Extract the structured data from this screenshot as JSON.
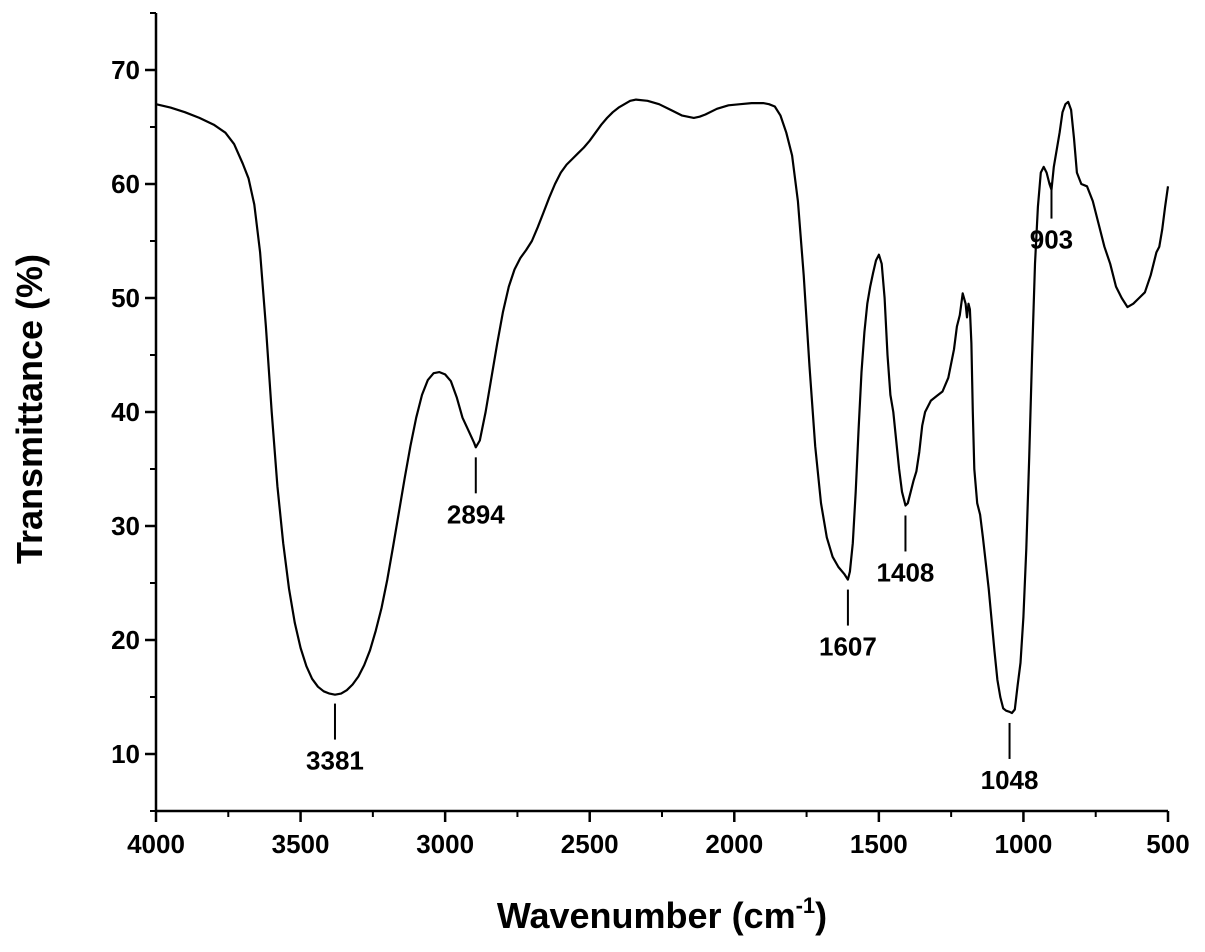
{
  "chart_data": {
    "type": "line",
    "title": "",
    "xlabel": "Wavenumber (cm",
    "xlabel_superscript": "-1",
    "xlabel_suffix": ")",
    "ylabel": "Transmittance  (%)",
    "xlim": [
      4000,
      500
    ],
    "ylim": [
      5,
      75
    ],
    "x_reversed": true,
    "x_ticks": [
      4000,
      3500,
      3000,
      2500,
      2000,
      1500,
      1000,
      500
    ],
    "x_tick_labels": [
      "4000",
      "3500",
      "3000",
      "2500",
      "2000",
      "1500",
      "1000",
      "500"
    ],
    "y_ticks": [
      10,
      20,
      30,
      40,
      50,
      60,
      70
    ],
    "y_tick_labels": [
      "10",
      "20",
      "30",
      "40",
      "50",
      "60",
      "70"
    ],
    "grid": false,
    "line_color": "#000000",
    "series": [
      {
        "x": [
          4000,
          3950,
          3900,
          3850,
          3800,
          3760,
          3730,
          3700,
          3680,
          3660,
          3640,
          3620,
          3600,
          3580,
          3560,
          3540,
          3520,
          3500,
          3480,
          3460,
          3440,
          3420,
          3400,
          3381,
          3360,
          3340,
          3320,
          3300,
          3280,
          3260,
          3240,
          3220,
          3200,
          3180,
          3160,
          3140,
          3120,
          3100,
          3080,
          3060,
          3040,
          3020,
          3000,
          2980,
          2960,
          2940,
          2920,
          2900,
          2894,
          2880,
          2860,
          2840,
          2820,
          2800,
          2780,
          2760,
          2740,
          2720,
          2700,
          2680,
          2660,
          2640,
          2620,
          2600,
          2580,
          2560,
          2540,
          2520,
          2500,
          2480,
          2460,
          2440,
          2420,
          2400,
          2380,
          2360,
          2340,
          2300,
          2260,
          2220,
          2180,
          2140,
          2120,
          2100,
          2060,
          2020,
          1980,
          1940,
          1900,
          1880,
          1860,
          1840,
          1820,
          1800,
          1780,
          1760,
          1740,
          1720,
          1700,
          1680,
          1660,
          1640,
          1620,
          1607,
          1600,
          1590,
          1580,
          1570,
          1560,
          1550,
          1540,
          1530,
          1520,
          1510,
          1500,
          1490,
          1480,
          1470,
          1460,
          1450,
          1440,
          1430,
          1420,
          1408,
          1400,
          1390,
          1380,
          1370,
          1360,
          1350,
          1340,
          1320,
          1300,
          1280,
          1260,
          1240,
          1230,
          1220,
          1210,
          1200,
          1195,
          1190,
          1185,
          1180,
          1175,
          1170,
          1160,
          1150,
          1140,
          1120,
          1100,
          1090,
          1080,
          1070,
          1060,
          1048,
          1040,
          1030,
          1020,
          1010,
          1000,
          990,
          980,
          970,
          960,
          950,
          940,
          930,
          920,
          910,
          903,
          895,
          885,
          875,
          865,
          855,
          845,
          835,
          825,
          815,
          800,
          780,
          760,
          740,
          720,
          700,
          680,
          660,
          640,
          620,
          600,
          580,
          560,
          540,
          530,
          520,
          510,
          500
        ],
        "y": [
          67.0,
          66.7,
          66.3,
          65.8,
          65.2,
          64.5,
          63.5,
          61.8,
          60.5,
          58.2,
          54.0,
          47.5,
          40.0,
          33.5,
          28.5,
          24.5,
          21.5,
          19.3,
          17.7,
          16.6,
          15.9,
          15.5,
          15.3,
          15.2,
          15.3,
          15.6,
          16.1,
          16.8,
          17.8,
          19.1,
          20.8,
          22.8,
          25.3,
          28.2,
          31.2,
          34.2,
          37.0,
          39.5,
          41.5,
          42.8,
          43.4,
          43.5,
          43.3,
          42.7,
          41.3,
          39.5,
          38.4,
          37.3,
          36.9,
          37.5,
          40.0,
          43.0,
          46.0,
          48.8,
          51.0,
          52.5,
          53.5,
          54.2,
          55.0,
          56.2,
          57.5,
          58.8,
          60.0,
          61.0,
          61.7,
          62.2,
          62.7,
          63.2,
          63.8,
          64.5,
          65.2,
          65.8,
          66.3,
          66.7,
          67.0,
          67.3,
          67.4,
          67.3,
          67.0,
          66.5,
          66.0,
          65.8,
          65.9,
          66.1,
          66.6,
          66.9,
          67.0,
          67.1,
          67.1,
          67.0,
          66.8,
          66.0,
          64.5,
          62.5,
          58.5,
          52.0,
          44.0,
          37.0,
          32.0,
          29.0,
          27.3,
          26.4,
          25.8,
          25.3,
          26.0,
          28.5,
          33.0,
          38.5,
          43.5,
          47.0,
          49.5,
          51.0,
          52.2,
          53.3,
          53.8,
          53.0,
          50.0,
          45.0,
          41.5,
          40.0,
          37.5,
          35.0,
          33.0,
          31.8,
          32.0,
          33.0,
          34.0,
          34.8,
          36.5,
          38.8,
          40.0,
          41.0,
          41.4,
          41.8,
          43.0,
          45.5,
          47.5,
          48.5,
          50.4,
          49.5,
          48.3,
          49.5,
          49.0,
          46.0,
          40.0,
          35.0,
          32.0,
          31.0,
          29.0,
          24.5,
          19.0,
          16.5,
          15.0,
          14.0,
          13.8,
          13.7,
          13.6,
          13.9,
          16.0,
          18.0,
          22.0,
          28.0,
          36.0,
          45.0,
          53.0,
          58.0,
          61.0,
          61.5,
          61.0,
          60.0,
          59.5,
          61.5,
          63.0,
          64.5,
          66.3,
          67.0,
          67.2,
          66.5,
          64.0,
          61.0,
          60.0,
          59.8,
          58.5,
          56.5,
          54.5,
          53.0,
          51.0,
          50.0,
          49.2,
          49.5,
          50.0,
          50.5,
          52.0,
          54.0,
          54.5,
          56.0,
          58.0,
          59.8
        ]
      }
    ],
    "annotations": [
      {
        "label": "3381",
        "x": 3381,
        "y_tip": 15.3,
        "text_pos": "below"
      },
      {
        "label": "2894",
        "x": 2894,
        "y_tip": 36.9,
        "text_pos": "below"
      },
      {
        "label": "1607",
        "x": 1607,
        "y_tip": 25.3,
        "text_pos": "below"
      },
      {
        "label": "1408",
        "x": 1408,
        "y_tip": 31.8,
        "text_pos": "below"
      },
      {
        "label": "1048",
        "x": 1048,
        "y_tip": 13.6,
        "text_pos": "below"
      },
      {
        "label": "903",
        "x": 903,
        "y_tip": 61.0,
        "text_pos": "below"
      }
    ]
  }
}
